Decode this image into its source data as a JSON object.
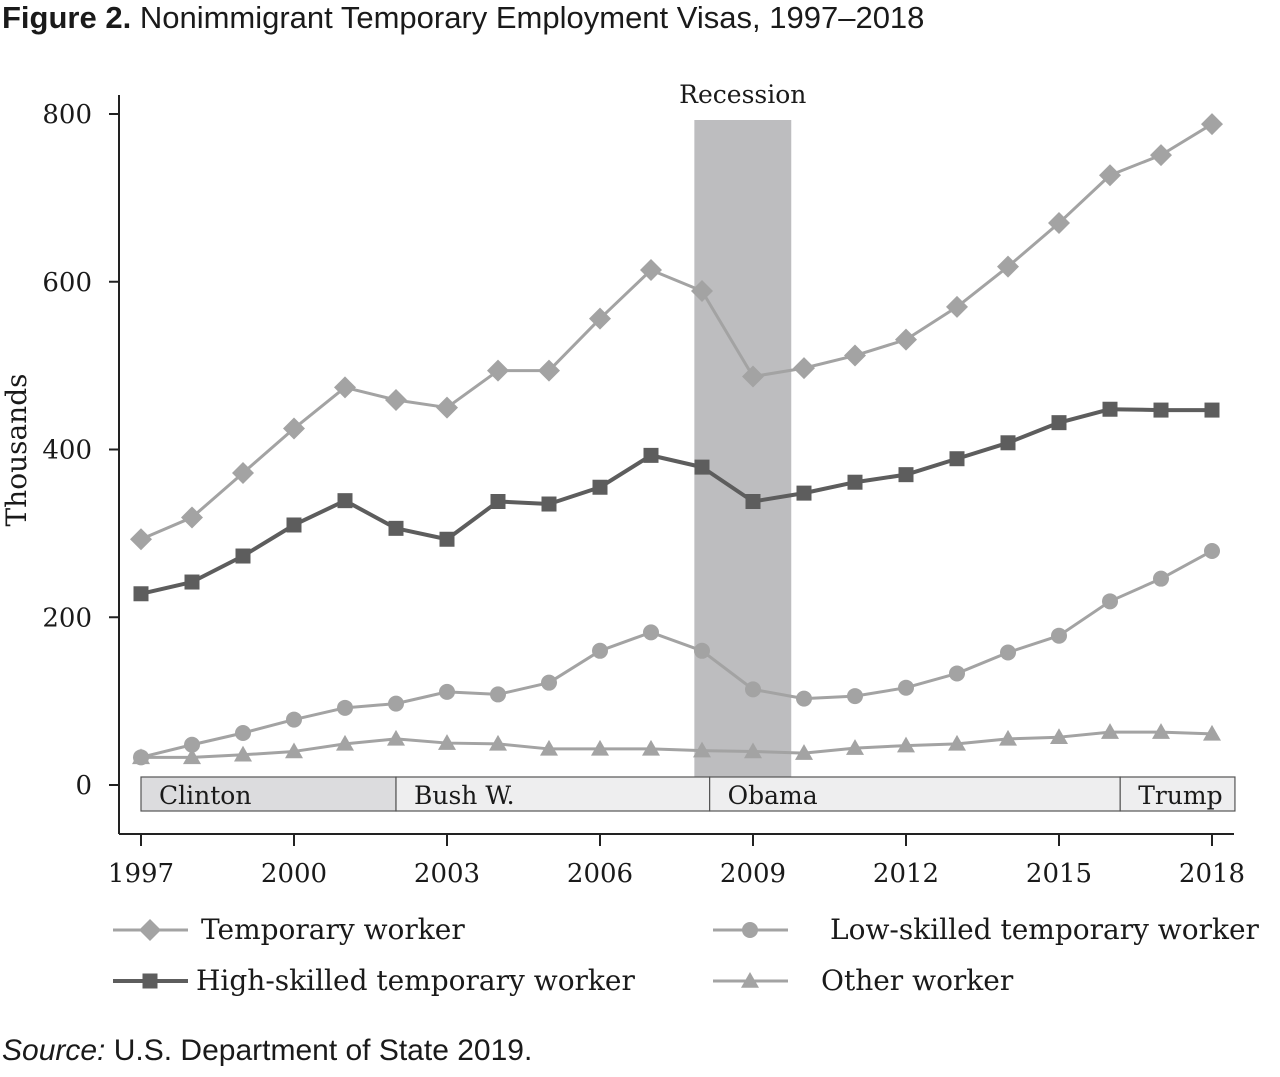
{
  "figure": {
    "label": "Figure 2.",
    "title": "Nonimmigrant Temporary Employment Visas, 1997–2018"
  },
  "source": {
    "label": "Source:",
    "text": "U.S. Department of State 2019."
  },
  "chart_data": {
    "type": "line",
    "title": "Nonimmigrant Temporary Employment Visas, 1997–2018",
    "xlabel": "",
    "ylabel": "Thousands",
    "xlim": [
      1997,
      2018
    ],
    "ylim": [
      0,
      800
    ],
    "x_ticks": [
      1997,
      2000,
      2003,
      2006,
      2009,
      2012,
      2015,
      2018
    ],
    "y_ticks": [
      0,
      200,
      400,
      600,
      800
    ],
    "grid": false,
    "x": [
      1997,
      1998,
      1999,
      2000,
      2001,
      2002,
      2003,
      2004,
      2005,
      2006,
      2007,
      2008,
      2009,
      2010,
      2011,
      2012,
      2013,
      2014,
      2015,
      2016,
      2017,
      2018
    ],
    "series": [
      {
        "name": "Temporary worker",
        "marker": "diamond",
        "color": "#a3a3a3",
        "values": [
          293,
          319,
          372,
          425,
          474,
          459,
          450,
          494,
          494,
          556,
          614,
          589,
          487,
          497,
          512,
          531,
          570,
          618,
          670,
          727,
          751,
          788
        ]
      },
      {
        "name": "High-skilled temporary worker",
        "marker": "square",
        "color": "#5d5d5d",
        "values": [
          228,
          242,
          273,
          310,
          339,
          306,
          293,
          338,
          335,
          355,
          393,
          379,
          338,
          348,
          361,
          370,
          389,
          408,
          432,
          448,
          447,
          447
        ]
      },
      {
        "name": "Low-skilled temporary worker",
        "marker": "circle",
        "color": "#a3a3a3",
        "values": [
          33,
          48,
          62,
          78,
          92,
          97,
          111,
          108,
          122,
          160,
          182,
          160,
          114,
          103,
          106,
          116,
          133,
          158,
          178,
          219,
          246,
          279
        ]
      },
      {
        "name": "Other worker",
        "marker": "triangle",
        "color": "#a3a3a3",
        "values": [
          33,
          33,
          36,
          40,
          49,
          55,
          50,
          49,
          43,
          43,
          43,
          41,
          40,
          38,
          44,
          47,
          49,
          55,
          57,
          63,
          63,
          61
        ]
      }
    ],
    "shaded_regions": [
      {
        "label": "Recession",
        "start": 2007.85,
        "end": 2009.75,
        "color": "#bdbdbf"
      }
    ],
    "administrations": [
      {
        "label": "Clinton",
        "start": 1997,
        "end": 2002
      },
      {
        "label": "Bush W.",
        "start": 2002,
        "end": 2008.15
      },
      {
        "label": "Obama",
        "start": 2008.15,
        "end": 2016.2
      },
      {
        "label": "Trump",
        "start": 2016.2,
        "end": 2018.45
      }
    ],
    "legend_position": "bottom"
  }
}
